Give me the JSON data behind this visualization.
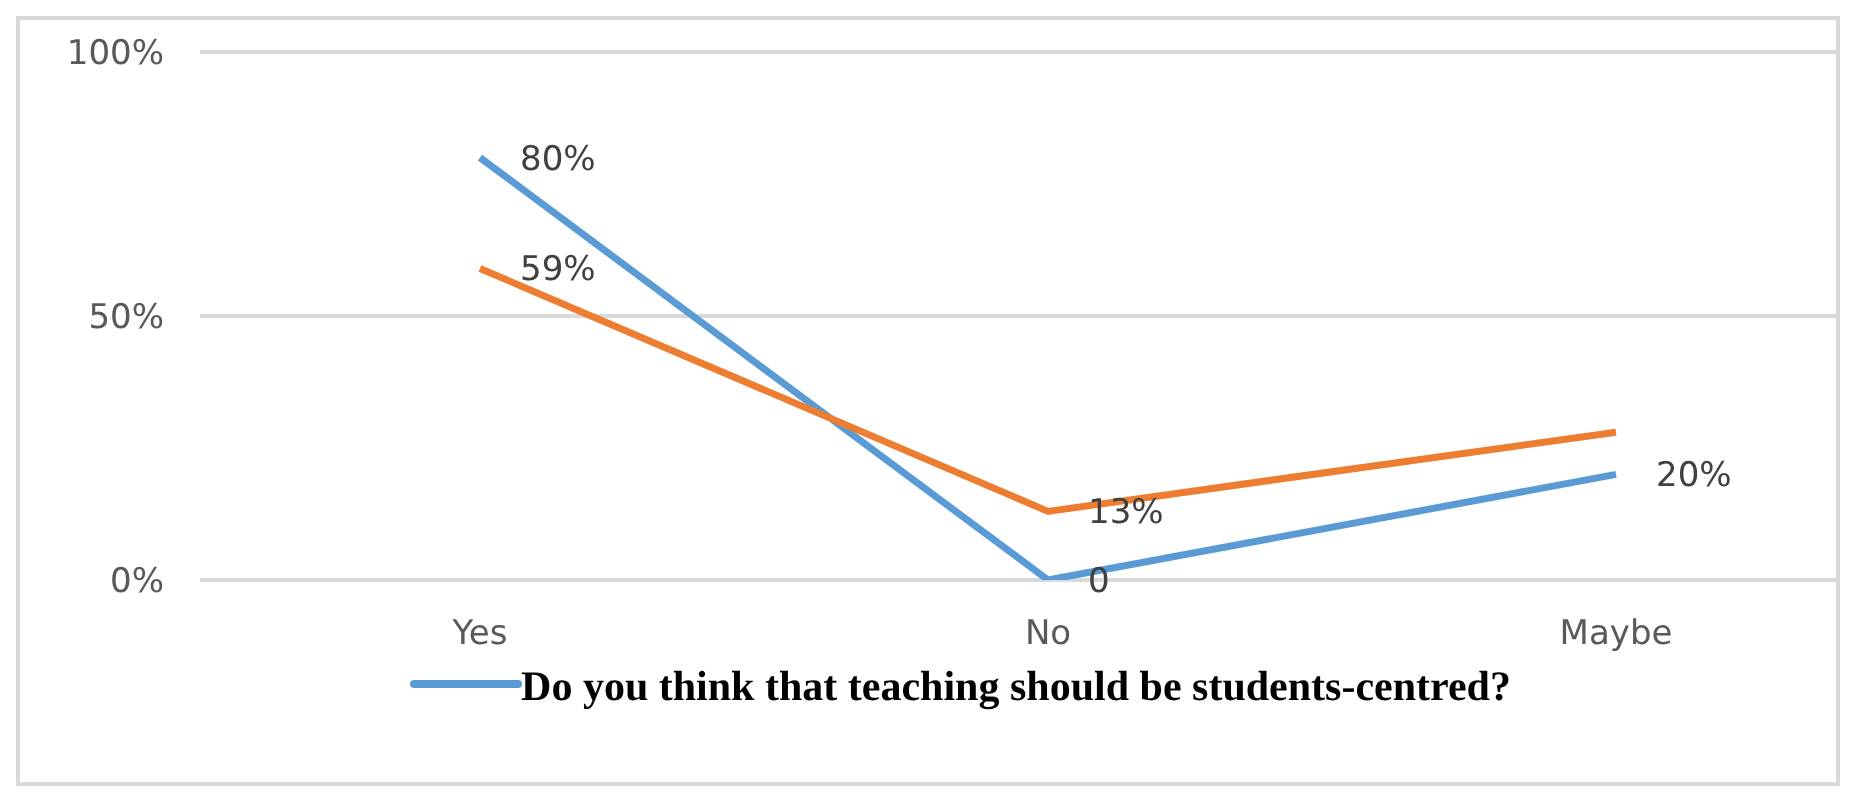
{
  "chart_data": {
    "type": "line",
    "categories": [
      "Yes",
      "No",
      "Maybe"
    ],
    "series": [
      {
        "name": "Do you think that teaching should be students-centred?",
        "color": "#5b9bd5",
        "values": [
          80,
          0,
          20
        ],
        "value_labels": [
          "80%",
          "0",
          "20%"
        ]
      },
      {
        "color": "#ed7d31",
        "values": [
          59,
          13,
          28
        ],
        "value_labels": [
          "59%",
          "13%",
          null
        ]
      }
    ],
    "ylim": [
      0,
      100
    ],
    "yticks": [
      {
        "value": 0,
        "label": "0%"
      },
      {
        "value": 50,
        "label": "50%"
      },
      {
        "value": 100,
        "label": "100%"
      }
    ],
    "grid": "y",
    "legend": "bottom",
    "marker": "none",
    "line_style": "solid"
  }
}
